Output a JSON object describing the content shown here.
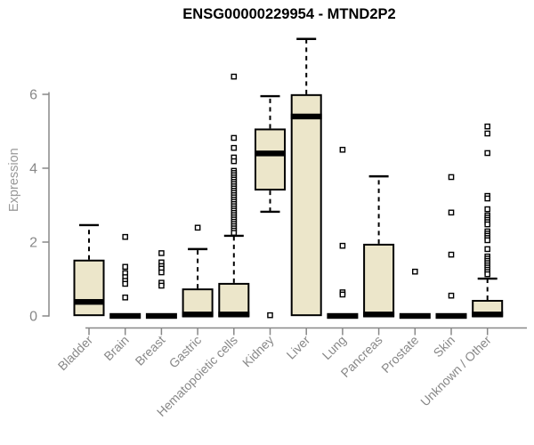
{
  "chart_data": {
    "type": "boxplot",
    "title": "ENSG00000229954 - MTND2P2",
    "ylabel": "Expression",
    "xlabel": "",
    "ylim": [
      0,
      7.6
    ],
    "yticks": [
      0,
      2,
      4,
      6
    ],
    "grid": false,
    "legend": "none",
    "box_fill_color": "#ece6ca",
    "box_line_color": "#000000",
    "axis_color": "#888888",
    "categories": [
      "Bladder",
      "Brain",
      "Breast",
      "Gastric",
      "Hematopoietic cells",
      "Kidney",
      "Liver",
      "Lung",
      "Pancreas",
      "Prostate",
      "Skin",
      "Unknown / Other"
    ],
    "boxes": [
      {
        "category": "Bladder",
        "q1": 0.02,
        "median": 0.38,
        "q3": 1.5,
        "whisker_low": 0.02,
        "whisker_high": 2.46,
        "outliers": []
      },
      {
        "category": "Brain",
        "q1": 0,
        "median": 0,
        "q3": 0,
        "whisker_low": 0,
        "whisker_high": 0,
        "outliers": [
          2.14,
          1.33,
          1.16,
          1.05,
          0.95,
          0.87,
          0.5
        ]
      },
      {
        "category": "Breast",
        "q1": 0,
        "median": 0,
        "q3": 0,
        "whisker_low": 0,
        "whisker_high": 0,
        "outliers": [
          1.7,
          1.45,
          1.35,
          1.28,
          1.18,
          0.9,
          0.82
        ]
      },
      {
        "category": "Gastric",
        "q1": 0,
        "median": 0.04,
        "q3": 0.72,
        "whisker_low": 0,
        "whisker_high": 1.81,
        "outliers": [
          2.39
        ]
      },
      {
        "category": "Hematopoietic cells",
        "q1": 0,
        "median": 0.04,
        "q3": 0.87,
        "whisker_low": 0,
        "whisker_high": 2.17,
        "outliers": [
          6.48,
          4.82,
          4.55,
          4.29,
          4.19,
          3.93,
          3.87,
          3.81,
          3.75,
          3.69,
          3.63,
          3.57,
          3.51,
          3.45,
          3.39,
          3.33,
          3.27,
          3.21,
          3.15,
          3.09,
          3.03,
          2.97,
          2.91,
          2.85,
          2.79,
          2.73,
          2.67,
          2.61,
          2.55,
          2.49,
          2.43,
          2.37,
          2.31,
          2.25
        ]
      },
      {
        "category": "Kidney",
        "q1": 3.42,
        "median": 4.4,
        "q3": 5.05,
        "whisker_low": 2.82,
        "whisker_high": 5.95,
        "outliers": [
          0.02
        ]
      },
      {
        "category": "Liver",
        "q1": 0.02,
        "median": 5.4,
        "q3": 5.98,
        "whisker_low": 0.02,
        "whisker_high": 7.5,
        "outliers": []
      },
      {
        "category": "Lung",
        "q1": 0,
        "median": 0,
        "q3": 0,
        "whisker_low": 0,
        "whisker_high": 0,
        "outliers": [
          4.5,
          1.9,
          0.64,
          0.58
        ]
      },
      {
        "category": "Pancreas",
        "q1": 0,
        "median": 0.04,
        "q3": 1.93,
        "whisker_low": 0,
        "whisker_high": 3.78,
        "outliers": []
      },
      {
        "category": "Prostate",
        "q1": 0,
        "median": 0,
        "q3": 0,
        "whisker_low": 0,
        "whisker_high": 0,
        "outliers": [
          1.2
        ]
      },
      {
        "category": "Skin",
        "q1": 0,
        "median": 0,
        "q3": 0,
        "whisker_low": 0,
        "whisker_high": 0,
        "outliers": [
          3.76,
          2.8,
          1.66,
          0.55
        ]
      },
      {
        "category": "Unknown / Other",
        "q1": 0,
        "median": 0.04,
        "q3": 0.41,
        "whisker_low": 0,
        "whisker_high": 1.01,
        "outliers": [
          5.13,
          4.94,
          4.41,
          3.25,
          3.18,
          2.89,
          2.72,
          2.66,
          2.6,
          2.54,
          2.48,
          2.29,
          2.23,
          2.17,
          2.11,
          2.05,
          1.81,
          1.61,
          1.55,
          1.49,
          1.43,
          1.37,
          1.31,
          1.25,
          1.19,
          1.13
        ]
      }
    ]
  }
}
